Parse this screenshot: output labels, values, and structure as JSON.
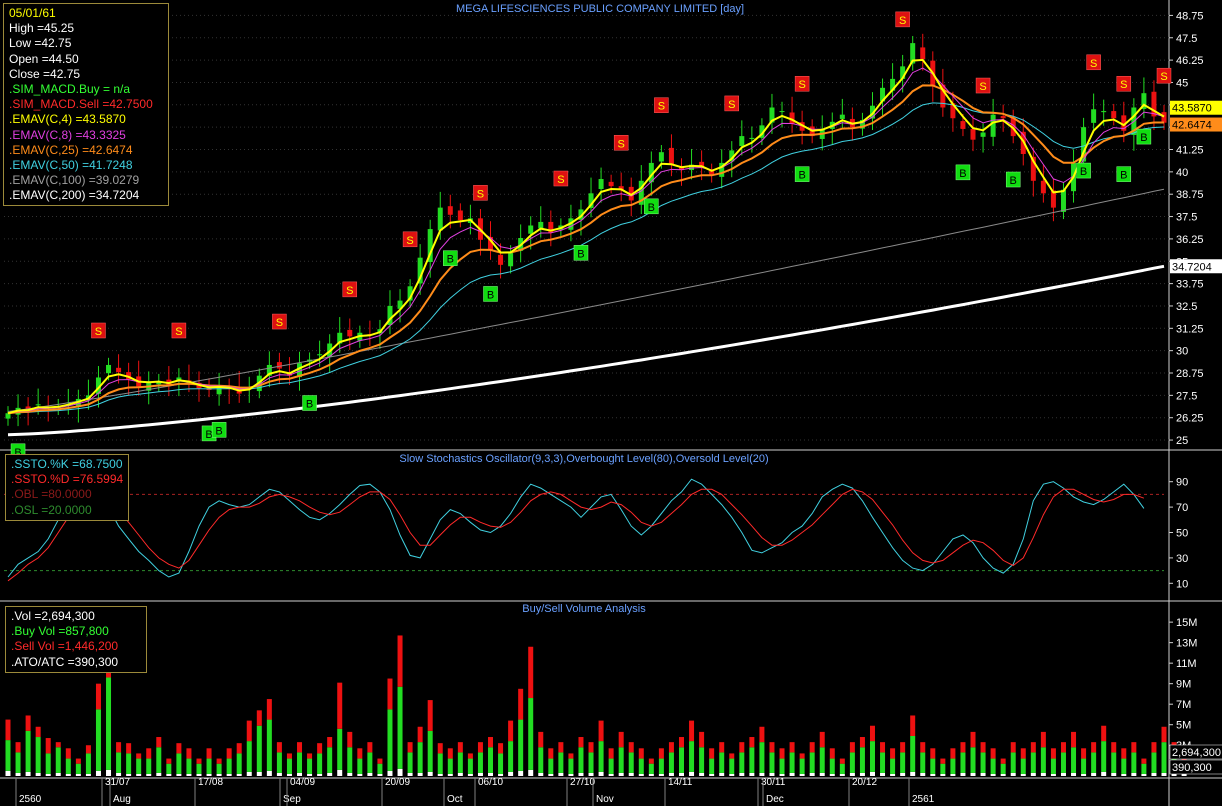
{
  "chart_data": [
    {
      "type": "candlestick",
      "title": "MEGA LIFESCIENCES PUBLIC COMPANY LIMITED [day]",
      "ylim": [
        24.5,
        49.5
      ],
      "y_ticks": [
        "48.75",
        "47.5",
        "46.25",
        "45",
        "43.75",
        "42.5",
        "41.25",
        "40",
        "38.75",
        "37.5",
        "36.25",
        "35",
        "33.75",
        "32.5",
        "31.25",
        "30",
        "28.75",
        "27.5",
        "26.25",
        "25"
      ],
      "value_flags": [
        {
          "label": "43.5870",
          "value": 43.587,
          "color": "#ffff00"
        },
        {
          "label": "42.6474",
          "value": 42.6474,
          "color": "#ff8c1a"
        },
        {
          "label": "34.7204",
          "value": 34.7204,
          "color": "#ffffff"
        }
      ],
      "x_labels": [
        "2560",
        "Aug",
        "31/07",
        "17/08",
        "Sep",
        "04/09",
        "20/09",
        "Oct",
        "06/10",
        "27/10",
        "Nov",
        "14/11",
        "30/11",
        "Dec",
        "20/12",
        "2561"
      ],
      "readout": {
        "date": "05/01/61",
        "lines": [
          {
            "text": "High  =45.25",
            "color": "#ffffff"
          },
          {
            "text": "Low  =42.75",
            "color": "#ffffff"
          },
          {
            "text": "Open  =44.50",
            "color": "#ffffff"
          },
          {
            "text": "Close  =42.75",
            "color": "#ffffff"
          },
          {
            "text": ".SIM_MACD.Buy   = n/a",
            "color": "#33ff33"
          },
          {
            "text": ".SIM_MACD.Sell   =42.7500",
            "color": "#ff2a2a"
          },
          {
            "text": ".EMAV(C,4)   =43.5870",
            "color": "#ffff00"
          },
          {
            "text": ".EMAV(C,8)   =43.3325",
            "color": "#e040e0"
          },
          {
            "text": ".EMAV(C,25)   =42.6474",
            "color": "#ff8c1a"
          },
          {
            "text": ".EMAV(C,50)   =41.7248",
            "color": "#40d0e0"
          },
          {
            "text": ".EMAV(C,100)   =39.0279",
            "color": "#a0a0a0"
          },
          {
            "text": ".EMAV(C,200)   =34.7204",
            "color": "#ffffff"
          }
        ]
      },
      "candles_close": [
        26.5,
        26.8,
        26.7,
        27.0,
        26.8,
        26.9,
        27.1,
        27.3,
        27.5,
        28.5,
        29.2,
        28.8,
        28.4,
        28.0,
        28.2,
        28.3,
        28.1,
        28.5,
        28.2,
        27.9,
        27.8,
        28.0,
        27.9,
        27.6,
        27.9,
        28.6,
        29.2,
        29.0,
        28.6,
        29.3,
        29.5,
        29.8,
        30.4,
        31.0,
        30.8,
        31.0,
        30.9,
        31.2,
        32.5,
        32.8,
        33.6,
        35.2,
        36.8,
        38.0,
        37.6,
        37.3,
        37.4,
        36.2,
        35.6,
        34.8,
        35.5,
        36.3,
        37.0,
        37.2,
        36.6,
        37.0,
        37.4,
        37.9,
        38.8,
        39.6,
        39.2,
        39.0,
        38.4,
        39.5,
        40.5,
        41.1,
        40.4,
        40.1,
        40.4,
        40.3,
        39.8,
        40.5,
        41.2,
        42.0,
        41.9,
        42.6,
        43.6,
        43.4,
        42.7,
        42.3,
        42.0,
        42.4,
        42.8,
        43.2,
        42.5,
        42.9,
        43.7,
        44.7,
        45.2,
        45.9,
        47.2,
        46.3,
        44.8,
        43.6,
        43.0,
        42.4,
        41.8,
        42.2,
        43.2,
        43.0,
        42.0,
        41.0,
        39.5,
        38.8,
        38.0,
        39.0,
        40.5,
        42.5,
        43.5,
        43.4,
        43.0,
        42.3,
        43.6,
        44.4,
        43.1,
        42.75
      ],
      "sell_signals": [
        {
          "i": 9,
          "label": "S"
        },
        {
          "i": 17,
          "label": "S"
        },
        {
          "i": 27,
          "label": "S"
        },
        {
          "i": 34,
          "label": "S"
        },
        {
          "i": 40,
          "label": "S"
        },
        {
          "i": 47,
          "label": "S"
        },
        {
          "i": 55,
          "label": "S"
        },
        {
          "i": 61,
          "label": "S"
        },
        {
          "i": 65,
          "label": "S"
        },
        {
          "i": 72,
          "label": "S"
        },
        {
          "i": 79,
          "label": "S"
        },
        {
          "i": 89,
          "label": "S"
        },
        {
          "i": 97,
          "label": "S"
        },
        {
          "i": 108,
          "label": "S"
        },
        {
          "i": 111,
          "label": "S"
        },
        {
          "i": 115,
          "label": "S"
        }
      ],
      "buy_signals": [
        {
          "i": 1,
          "label": "B"
        },
        {
          "i": 20,
          "label": "B"
        },
        {
          "i": 21,
          "label": "B"
        },
        {
          "i": 30,
          "label": "B"
        },
        {
          "i": 44,
          "label": "B"
        },
        {
          "i": 48,
          "label": "B"
        },
        {
          "i": 57,
          "label": "B"
        },
        {
          "i": 64,
          "label": "B"
        },
        {
          "i": 79,
          "label": "B"
        },
        {
          "i": 95,
          "label": "B"
        },
        {
          "i": 100,
          "label": "B"
        },
        {
          "i": 107,
          "label": "B"
        },
        {
          "i": 111,
          "label": "B"
        },
        {
          "i": 113,
          "label": "B"
        }
      ]
    },
    {
      "type": "line",
      "title": "Slow Stochastics Oscillator(9,3,3),Overbought Level(80),Oversold Level(20)",
      "ylim": [
        0,
        100
      ],
      "y_ticks": [
        "90",
        "70",
        "50",
        "30",
        "10"
      ],
      "overbought": 80,
      "oversold": 20,
      "readout": [
        {
          "text": ".SSTO.%K   =68.7500",
          "color": "#40d0e0"
        },
        {
          "text": ".SSTO.%D   =76.5994",
          "color": "#ff2a2a"
        },
        {
          "text": ".OBL   =80.0000",
          "color": "#8b1a1a"
        },
        {
          "text": ".OSL   =20.0000",
          "color": "#2e8b2e"
        }
      ],
      "series": [
        {
          "name": ".SSTO.%K",
          "color": "#40d0e0",
          "values": [
            15,
            25,
            30,
            35,
            45,
            60,
            75,
            85,
            90,
            85,
            70,
            55,
            45,
            35,
            28,
            20,
            15,
            18,
            35,
            55,
            70,
            75,
            72,
            70,
            72,
            78,
            84,
            82,
            75,
            68,
            62,
            60,
            65,
            72,
            80,
            87,
            88,
            82,
            68,
            48,
            32,
            30,
            45,
            60,
            68,
            65,
            58,
            52,
            50,
            55,
            65,
            78,
            88,
            85,
            80,
            75,
            70,
            62,
            70,
            78,
            80,
            68,
            55,
            48,
            55,
            65,
            75,
            82,
            92,
            88,
            80,
            72,
            62,
            50,
            36,
            34,
            38,
            42,
            50,
            55,
            65,
            78,
            84,
            88,
            85,
            75,
            62,
            50,
            38,
            28,
            22,
            20,
            25,
            35,
            45,
            48,
            42,
            30,
            22,
            18,
            25,
            45,
            75,
            88,
            90,
            85,
            78,
            74,
            72,
            76,
            82,
            88,
            80,
            69
          ]
        },
        {
          "name": ".SSTO.%D",
          "color": "#ff2a2a",
          "values": [
            12,
            18,
            25,
            30,
            38,
            50,
            62,
            72,
            80,
            82,
            78,
            68,
            58,
            48,
            38,
            30,
            25,
            22,
            28,
            40,
            52,
            62,
            68,
            70,
            70,
            73,
            78,
            80,
            78,
            75,
            70,
            66,
            64,
            66,
            72,
            78,
            82,
            82,
            76,
            64,
            50,
            40,
            40,
            48,
            56,
            62,
            62,
            58,
            55,
            54,
            58,
            66,
            75,
            80,
            82,
            80,
            75,
            70,
            68,
            70,
            74,
            72,
            66,
            58,
            55,
            58,
            65,
            72,
            80,
            84,
            84,
            80,
            72,
            64,
            55,
            46,
            40,
            40,
            44,
            50,
            56,
            64,
            72,
            80,
            84,
            82,
            76,
            66,
            56,
            44,
            34,
            28,
            26,
            28,
            34,
            40,
            44,
            42,
            36,
            28,
            24,
            30,
            46,
            64,
            78,
            84,
            84,
            80,
            76,
            74,
            76,
            80,
            80,
            77
          ]
        }
      ]
    },
    {
      "type": "bar",
      "title": "Buy/Sell Volume Analysis",
      "ylim": [
        0,
        15.5
      ],
      "y_ticks": [
        "15M",
        "13M",
        "11M",
        "9M",
        "7M",
        "5M",
        "3M"
      ],
      "value_flags": [
        {
          "label": "2,694,300",
          "value": 2.6943
        },
        {
          "label": "390,300",
          "value": 0.3903
        }
      ],
      "readout": [
        {
          "text": ".Vol   =2,694,300",
          "color": "#ffffff"
        },
        {
          "text": ".Buy Vol   =857,800",
          "color": "#33ff33"
        },
        {
          "text": ".Sell Vol   =1,446,200",
          "color": "#ff2a2a"
        },
        {
          "text": ".ATO/ATC   =390,300",
          "color": "#ffffff"
        }
      ],
      "series": [
        {
          "name": ".Buy Vol",
          "color": "#22dd22",
          "values": [
            3.0,
            2.0,
            4.0,
            3.5,
            2.0,
            2.5,
            1.5,
            1.0,
            2.0,
            6.0,
            9.0,
            2.0,
            2.0,
            1.5,
            1.5,
            2.5,
            1.0,
            2.0,
            1.5,
            1.0,
            1.5,
            1.0,
            1.5,
            2.0,
            3.0,
            4.5,
            5.0,
            2.0,
            1.5,
            2.0,
            1.5,
            2.0,
            2.5,
            4.0,
            2.5,
            1.5,
            2.0,
            1.0,
            6.0,
            8.0,
            2.0,
            3.0,
            4.0,
            2.0,
            1.5,
            2.0,
            1.5,
            2.0,
            2.5,
            2.0,
            3.0,
            5.0,
            7.0,
            2.5,
            1.5,
            2.0,
            1.5,
            2.5,
            2.0,
            3.0,
            1.5,
            2.5,
            2.0,
            1.5,
            1.0,
            1.5,
            2.0,
            2.5,
            3.0,
            2.5,
            1.5,
            2.0,
            1.5,
            2.0,
            2.5,
            3.0,
            2.0,
            1.5,
            2.0,
            1.5,
            2.0,
            2.5,
            1.5,
            1.0,
            2.0,
            2.5,
            3.0,
            2.0,
            1.5,
            2.0,
            3.5,
            2.0,
            1.5,
            1.0,
            1.5,
            2.0,
            2.5,
            2.0,
            1.5,
            1.0,
            2.0,
            1.5,
            2.0,
            2.5,
            1.5,
            2.0,
            2.5,
            1.5,
            2.0,
            3.0,
            2.0,
            1.5,
            2.0,
            1.0,
            2.0,
            3.0,
            2.0,
            0.9
          ]
        },
        {
          "name": ".Sell Vol",
          "color": "#ee1111",
          "values": [
            2.0,
            1.0,
            1.5,
            1.0,
            1.5,
            0.5,
            1.0,
            0.5,
            0.8,
            2.5,
            3.0,
            1.0,
            1.0,
            0.5,
            1.0,
            1.0,
            0.5,
            1.0,
            1.0,
            0.5,
            1.0,
            0.5,
            1.0,
            1.0,
            2.0,
            1.5,
            2.0,
            1.0,
            0.5,
            1.0,
            0.5,
            1.0,
            1.0,
            4.5,
            1.5,
            1.0,
            1.0,
            0.5,
            3.0,
            5.0,
            1.0,
            1.5,
            3.0,
            1.0,
            1.0,
            1.0,
            0.5,
            1.0,
            1.0,
            1.0,
            2.0,
            3.0,
            5.0,
            1.5,
            1.0,
            1.0,
            0.5,
            1.0,
            1.0,
            2.0,
            1.0,
            1.5,
            1.0,
            1.0,
            0.5,
            1.0,
            1.0,
            1.0,
            2.0,
            1.5,
            1.0,
            1.0,
            0.5,
            1.0,
            1.0,
            1.5,
            1.0,
            1.0,
            1.0,
            0.5,
            1.0,
            1.5,
            1.0,
            0.5,
            1.0,
            1.0,
            1.5,
            1.0,
            1.0,
            1.0,
            2.0,
            1.0,
            1.0,
            0.5,
            1.0,
            1.0,
            1.5,
            1.0,
            1.0,
            0.5,
            1.0,
            1.0,
            1.0,
            1.5,
            1.0,
            1.0,
            1.5,
            1.0,
            1.0,
            1.5,
            1.0,
            1.0,
            1.0,
            0.5,
            1.0,
            1.5,
            1.0,
            1.45
          ]
        },
        {
          "name": ".ATO/ATC",
          "color": "#ffffff",
          "values": [
            0.5,
            0.3,
            0.4,
            0.3,
            0.2,
            0.3,
            0.2,
            0.2,
            0.2,
            0.5,
            0.6,
            0.3,
            0.2,
            0.2,
            0.2,
            0.3,
            0.2,
            0.2,
            0.2,
            0.2,
            0.2,
            0.2,
            0.2,
            0.2,
            0.4,
            0.4,
            0.5,
            0.3,
            0.2,
            0.3,
            0.2,
            0.2,
            0.3,
            0.6,
            0.3,
            0.2,
            0.3,
            0.2,
            0.5,
            0.7,
            0.3,
            0.3,
            0.4,
            0.2,
            0.2,
            0.3,
            0.2,
            0.3,
            0.3,
            0.2,
            0.4,
            0.5,
            0.6,
            0.3,
            0.2,
            0.3,
            0.2,
            0.3,
            0.3,
            0.4,
            0.2,
            0.3,
            0.3,
            0.2,
            0.2,
            0.2,
            0.3,
            0.3,
            0.4,
            0.3,
            0.2,
            0.3,
            0.2,
            0.3,
            0.3,
            0.3,
            0.3,
            0.2,
            0.3,
            0.2,
            0.3,
            0.3,
            0.2,
            0.2,
            0.3,
            0.3,
            0.4,
            0.3,
            0.2,
            0.3,
            0.4,
            0.3,
            0.2,
            0.2,
            0.2,
            0.3,
            0.3,
            0.3,
            0.2,
            0.2,
            0.3,
            0.2,
            0.3,
            0.3,
            0.2,
            0.3,
            0.3,
            0.2,
            0.3,
            0.4,
            0.3,
            0.2,
            0.3,
            0.2,
            0.3,
            0.3,
            0.3,
            0.39
          ]
        }
      ]
    }
  ]
}
